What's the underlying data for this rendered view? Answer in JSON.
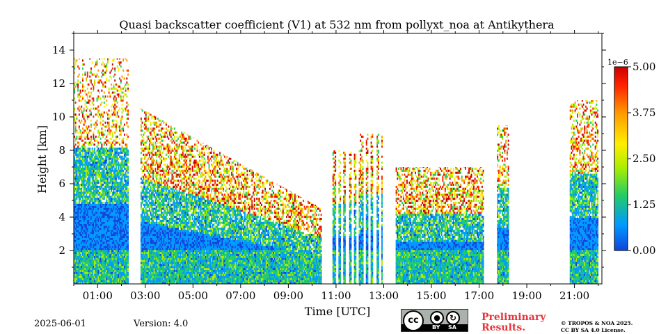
{
  "chart_data": {
    "type": "heatmap",
    "title": "Quasi backscatter coefficient (V1) at 532 nm from pollyxt_noa at Antikythera",
    "xlabel": "Time [UTC]",
    "ylabel": "Height [km]",
    "x_ticks": [
      "01:00",
      "03:00",
      "05:00",
      "07:00",
      "09:00",
      "11:00",
      "13:00",
      "15:00",
      "17:00",
      "19:00",
      "21:00"
    ],
    "y_ticks": [
      "2",
      "4",
      "6",
      "8",
      "10",
      "12",
      "14"
    ],
    "xlim_hours": [
      0,
      22.15
    ],
    "ylim_km": [
      0,
      15
    ],
    "colorbar": {
      "scale_label": "1e−6",
      "ticks": [
        "0.00",
        "1.25",
        "2.50",
        "3.75",
        "5.00"
      ],
      "range": [
        0,
        5e-06
      ],
      "colormap": [
        "#1144dd",
        "#0099ff",
        "#22cc66",
        "#aaee00",
        "#ffee00",
        "#ff9900",
        "#ff2200",
        "#cc0000"
      ]
    },
    "segments": [
      {
        "start": 0.0,
        "end": 2.3,
        "top_km": 13.5,
        "sparse": 0.35
      },
      {
        "start": 2.8,
        "end": 10.4,
        "top_km": 10.5,
        "decay_to_km": 4.5,
        "sparse": 0.6
      },
      {
        "start": 10.85,
        "end": 12.0,
        "top_km": 8.0,
        "striped": true,
        "sparse": 0.8
      },
      {
        "start": 12.0,
        "end": 12.95,
        "top_km": 9.0,
        "striped": true,
        "sparse": 0.8
      },
      {
        "start": 13.5,
        "end": 17.2,
        "top_km": 7.0,
        "sparse": 0.6
      },
      {
        "start": 17.75,
        "end": 18.25,
        "top_km": 9.5,
        "sparse": 0.5
      },
      {
        "start": 20.8,
        "end": 22.0,
        "top_km": 11.0,
        "sparse": 0.5
      }
    ]
  },
  "footer": {
    "date": "2025-06-01",
    "version": "Version: 4.0",
    "preliminary_line1": "Preliminary",
    "preliminary_line2": "Results.",
    "copyright_line1": "© TROPOS & NOA 2025.",
    "copyright_line2": "CC BY SA 4.0 License.",
    "cc_by": "BY",
    "cc_sa": "SA",
    "cc_glyph": "cc"
  }
}
